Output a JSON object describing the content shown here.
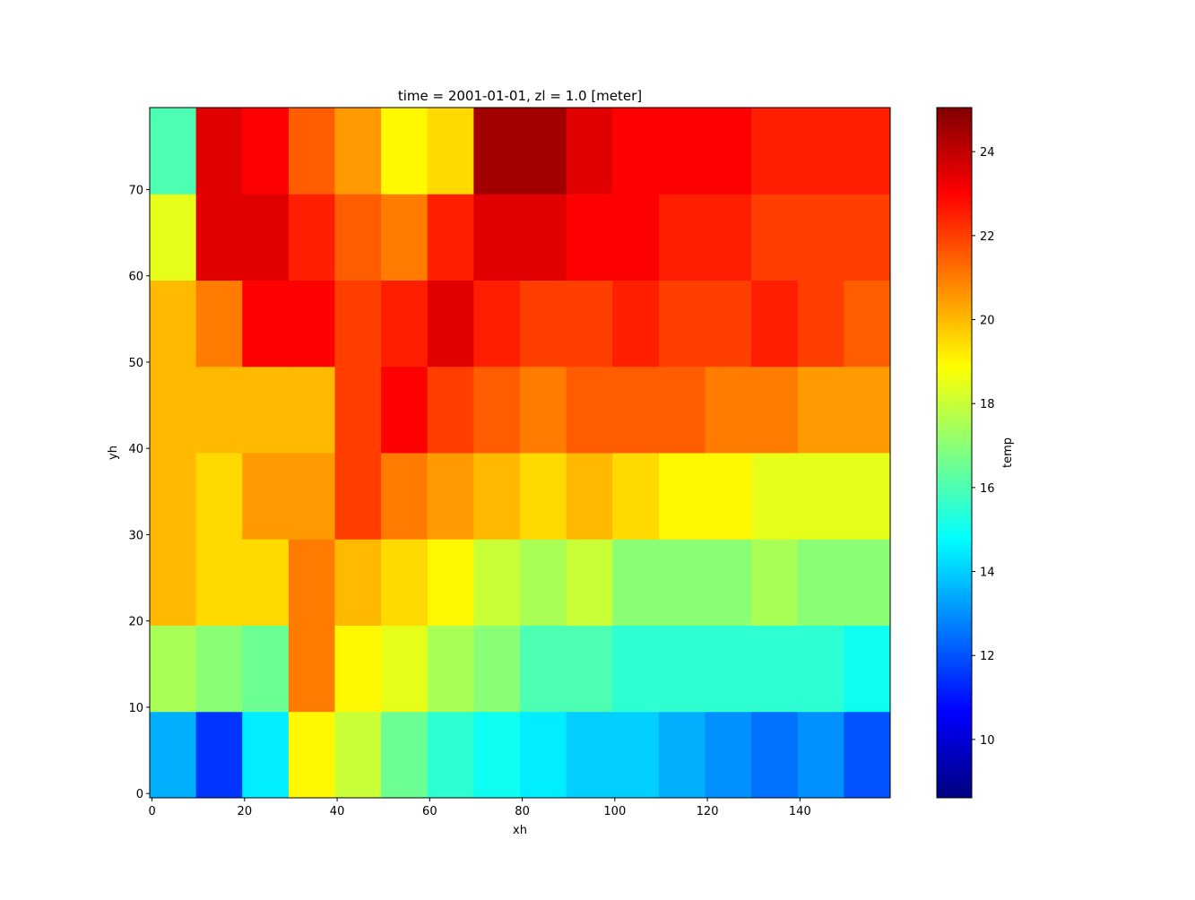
{
  "chart_data": {
    "type": "heatmap",
    "title": "time = 2001-01-01, zl = 1.0 [meter]",
    "x_label": "xh",
    "y_label": "yh",
    "colorbar_label": "temp",
    "colormap": "jet",
    "x": [
      -0.5,
      9.5,
      19.5,
      29.5,
      39.5,
      49.5,
      59.5,
      69.5,
      79.5,
      89.5,
      99.5,
      109.5,
      119.5,
      129.5,
      139.5,
      149.5,
      159.5
    ],
    "y": [
      -0.5,
      9.5,
      19.5,
      29.5,
      39.5,
      49.5,
      59.5,
      69.5,
      79.5
    ],
    "values": [
      [
        13.5,
        11.5,
        14.5,
        19,
        18,
        16.5,
        15.5,
        15,
        14.5,
        14,
        14,
        13.5,
        13,
        12.5,
        13,
        12
      ],
      [
        17.5,
        17,
        16.5,
        21,
        19,
        18.5,
        17.5,
        17,
        16,
        16,
        15.5,
        15.5,
        15.5,
        15.5,
        15.5,
        15
      ],
      [
        20,
        19.5,
        19.5,
        21,
        20,
        19.5,
        19,
        18,
        17.5,
        18,
        17,
        17,
        17,
        17.5,
        17,
        17
      ],
      [
        20,
        19.5,
        20.5,
        20.5,
        22,
        21,
        20.5,
        20,
        19.5,
        20,
        19.5,
        19,
        19,
        18.5,
        18.5,
        18.5
      ],
      [
        20,
        20,
        20,
        20,
        22,
        23,
        22,
        21.5,
        21,
        21.5,
        21.5,
        21.5,
        21,
        21,
        20.5,
        20.5
      ],
      [
        20,
        21,
        23,
        23,
        22,
        22.5,
        23.5,
        22.5,
        22,
        22,
        22.5,
        22,
        22,
        22.5,
        22,
        21.5
      ],
      [
        18.5,
        23.5,
        23.5,
        22.5,
        21.5,
        21,
        22.5,
        23.5,
        23.5,
        23,
        23,
        22.5,
        22.5,
        22,
        22,
        22
      ],
      [
        16,
        23.5,
        23,
        21.5,
        20.5,
        19,
        19.5,
        24.5,
        24.5,
        23.5,
        23,
        23,
        23,
        22.5,
        22.5,
        22.5
      ]
    ],
    "xlim": [
      -0.5,
      159.5
    ],
    "ylim": [
      -0.5,
      79.5
    ],
    "xticks": [
      0,
      20,
      40,
      60,
      80,
      100,
      120,
      140
    ],
    "yticks": [
      0,
      10,
      20,
      30,
      40,
      50,
      60,
      70
    ],
    "clim": [
      8.61,
      25.05
    ],
    "cticks": [
      10,
      12,
      14,
      16,
      18,
      20,
      22,
      24
    ]
  }
}
